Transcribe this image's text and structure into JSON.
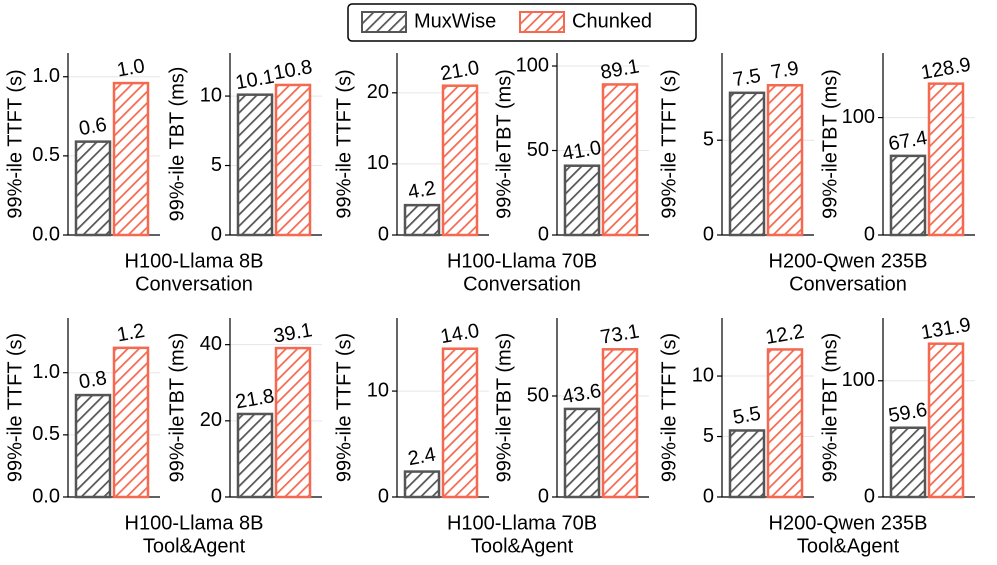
{
  "legend": [
    {
      "name": "MuxWise",
      "color": "#555555"
    },
    {
      "name": "Chunked",
      "color": "#f4694f"
    }
  ],
  "captions": [
    [
      "H100-Llama 8B",
      "Conversation"
    ],
    [
      "H100-Llama 70B",
      "Conversation"
    ],
    [
      "H200-Qwen 235B",
      "Conversation"
    ],
    [
      "H100-Llama 8B",
      "Tool&Agent"
    ],
    [
      "H100-Llama 70B",
      "Tool&Agent"
    ],
    [
      "H200-Qwen 235B",
      "Tool&Agent"
    ]
  ],
  "chart_data": [
    {
      "type": "bar",
      "ylabel": "99%-ile TTFT (s)",
      "values": [
        0.59,
        0.96
      ],
      "value_labels": [
        "0.6",
        "1.0"
      ],
      "ylim": [
        0,
        1.15
      ],
      "yticks": [
        {
          "value": 0,
          "label": "0.0"
        },
        0.5,
        {
          "value": 1,
          "label": "1.0"
        }
      ],
      "grid": true
    },
    {
      "type": "bar",
      "ylabel": "99%-ile TBT (ms)",
      "values": [
        10.1,
        10.8
      ],
      "value_labels": [
        "10.1",
        "10.8"
      ],
      "ylim": [
        0,
        13.1
      ],
      "yticks": [
        0,
        5,
        10
      ],
      "grid": true
    },
    {
      "type": "bar",
      "ylabel": "99%-ile TTFT (s)",
      "values": [
        4.2,
        21.0
      ],
      "value_labels": [
        "4.2",
        "21.0"
      ],
      "ylim": [
        0,
        25.6
      ],
      "yticks": [
        0,
        10,
        20
      ],
      "grid": true
    },
    {
      "type": "bar",
      "ylabel": "99%-ileTBT (ms)",
      "values": [
        41.0,
        89.1
      ],
      "value_labels": [
        "41.0",
        "89.1"
      ],
      "ylim": [
        0,
        107.7
      ],
      "yticks": [
        0,
        50,
        100
      ],
      "grid": true
    },
    {
      "type": "bar",
      "ylabel": "99%-ile TTFT (s)",
      "values": [
        7.5,
        7.9
      ],
      "value_labels": [
        "7.5",
        "7.9"
      ],
      "ylim": [
        0,
        9.6
      ],
      "yticks": [
        0,
        5
      ],
      "grid": true
    },
    {
      "type": "bar",
      "ylabel": "99%-ileTBT (ms)",
      "values": [
        67.4,
        128.9
      ],
      "value_labels": [
        "67.4",
        "128.9"
      ],
      "ylim": [
        0,
        155
      ],
      "yticks": [
        0,
        100
      ],
      "grid": true
    },
    {
      "type": "bar",
      "ylabel": "99%-ile TTFT (s)",
      "values": [
        0.82,
        1.2
      ],
      "value_labels": [
        "0.8",
        "1.2"
      ],
      "ylim": [
        0,
        1.44
      ],
      "yticks": [
        {
          "value": 0,
          "label": "0.0"
        },
        0.5,
        {
          "value": 1,
          "label": "1.0"
        }
      ],
      "grid": true
    },
    {
      "type": "bar",
      "ylabel": "99%-ileTBT (ms)",
      "values": [
        21.8,
        39.1
      ],
      "value_labels": [
        "21.8",
        "39.1"
      ],
      "ylim": [
        0,
        47
      ],
      "yticks": [
        0,
        20,
        40
      ],
      "grid": true
    },
    {
      "type": "bar",
      "ylabel": "99%-ile TTFT (s)",
      "values": [
        2.4,
        14.0
      ],
      "value_labels": [
        "2.4",
        "14.0"
      ],
      "ylim": [
        0,
        16.9
      ],
      "yticks": [
        0,
        10
      ],
      "grid": true
    },
    {
      "type": "bar",
      "ylabel": "99%-ileTBT (ms)",
      "values": [
        43.6,
        73.1
      ],
      "value_labels": [
        "43.6",
        "73.1"
      ],
      "ylim": [
        0,
        88.6
      ],
      "yticks": [
        0,
        50
      ],
      "grid": true
    },
    {
      "type": "bar",
      "ylabel": "99%-ile TTFT (s)",
      "values": [
        5.5,
        12.2
      ],
      "value_labels": [
        "5.5",
        "12.2"
      ],
      "ylim": [
        0,
        14.8
      ],
      "yticks": [
        0,
        5,
        10
      ],
      "grid": true
    },
    {
      "type": "bar",
      "ylabel": "99%-ileTBT (ms)",
      "values": [
        59.6,
        131.9
      ],
      "value_labels": [
        "59.6",
        "131.9"
      ],
      "ylim": [
        0,
        154
      ],
      "yticks": [
        0,
        100
      ],
      "grid": true
    }
  ]
}
